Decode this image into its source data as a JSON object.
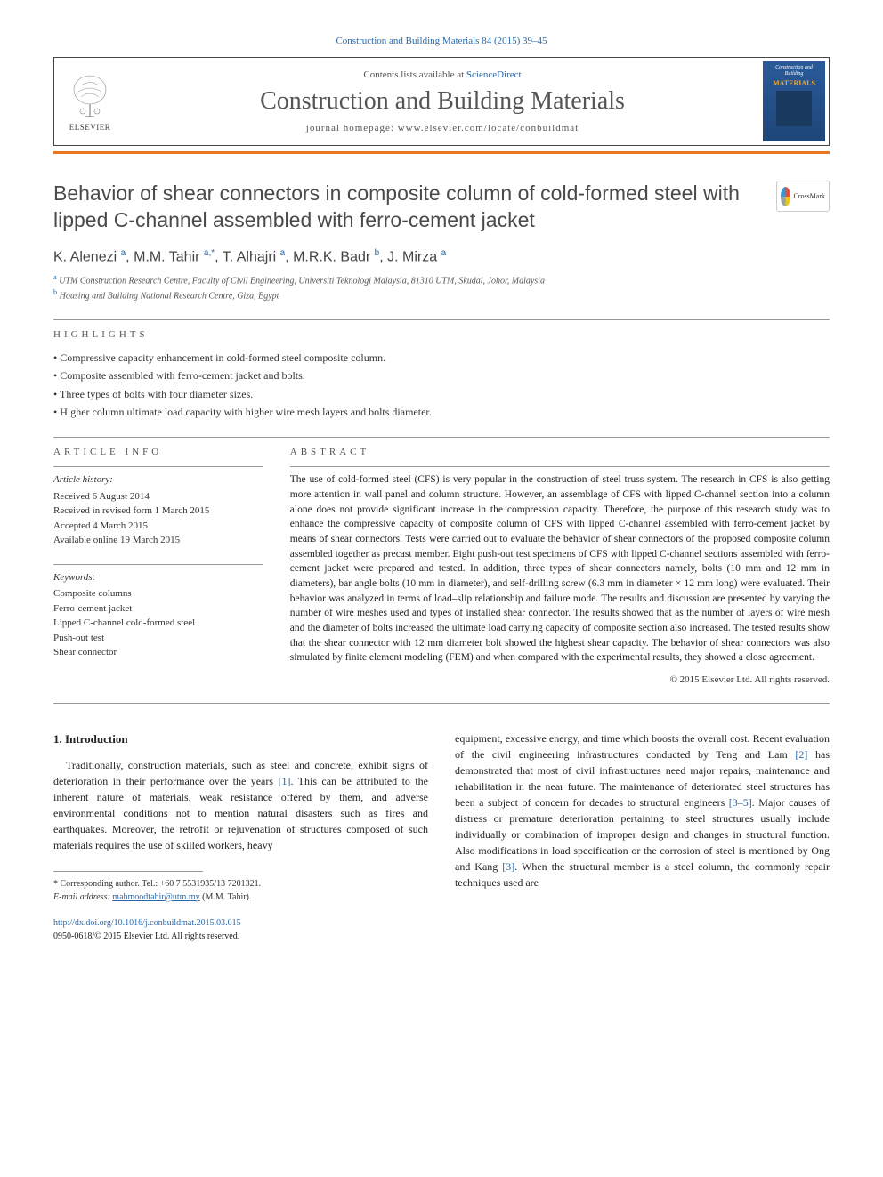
{
  "citation": "Construction and Building Materials 84 (2015) 39–45",
  "header": {
    "contents_prefix": "Contents lists available at ",
    "contents_link": "ScienceDirect",
    "journal_title": "Construction and Building Materials",
    "homepage": "journal homepage: www.elsevier.com/locate/conbuildmat",
    "elsevier": "ELSEVIER",
    "cover_line1": "Construction and Building",
    "cover_line2": "MATERIALS"
  },
  "crossmark": "CrossMark",
  "title": "Behavior of shear connectors in composite column of cold-formed steel with lipped C-channel assembled with ferro-cement jacket",
  "authors_html": "K. Alenezi <sup>a</sup>, M.M. Tahir <sup>a,*</sup>, T. Alhajri <sup>a</sup>, M.R.K. Badr <sup>b</sup>, J. Mirza <sup>a</sup>",
  "affiliations": [
    {
      "sup": "a",
      "text": "UTM Construction Research Centre, Faculty of Civil Engineering, Universiti Teknologi Malaysia, 81310 UTM, Skudai, Johor, Malaysia"
    },
    {
      "sup": "b",
      "text": "Housing and Building National Research Centre, Giza, Egypt"
    }
  ],
  "highlights_label": "highlights",
  "highlights": [
    "Compressive capacity enhancement in cold-formed steel composite column.",
    "Composite assembled with ferro-cement jacket and bolts.",
    "Three types of bolts with four diameter sizes.",
    "Higher column ultimate load capacity with higher wire mesh layers and bolts diameter."
  ],
  "article_info_label": "article info",
  "abstract_label": "abstract",
  "history": {
    "heading": "Article history:",
    "received": "Received 6 August 2014",
    "revised": "Received in revised form 1 March 2015",
    "accepted": "Accepted 4 March 2015",
    "online": "Available online 19 March 2015"
  },
  "keywords": {
    "heading": "Keywords:",
    "items": [
      "Composite columns",
      "Ferro-cement jacket",
      "Lipped C-channel cold-formed steel",
      "Push-out test",
      "Shear connector"
    ]
  },
  "abstract": "The use of cold-formed steel (CFS) is very popular in the construction of steel truss system. The research in CFS is also getting more attention in wall panel and column structure. However, an assemblage of CFS with lipped C-channel section into a column alone does not provide significant increase in the compression capacity. Therefore, the purpose of this research study was to enhance the compressive capacity of composite column of CFS with lipped C-channel assembled with ferro-cement jacket by means of shear connectors. Tests were carried out to evaluate the behavior of shear connectors of the proposed composite column assembled together as precast member. Eight push-out test specimens of CFS with lipped C-channel sections assembled with ferro-cement jacket were prepared and tested. In addition, three types of shear connectors namely, bolts (10 mm and 12 mm in diameters), bar angle bolts (10 mm in diameter), and self-drilling screw (6.3 mm in diameter × 12 mm long) were evaluated. Their behavior was analyzed in terms of load–slip relationship and failure mode. The results and discussion are presented by varying the number of wire meshes used and types of installed shear connector. The results showed that as the number of layers of wire mesh and the diameter of bolts increased the ultimate load carrying capacity of composite section also increased. The tested results show that the shear connector with 12 mm diameter bolt showed the highest shear capacity. The behavior of shear connectors was also simulated by finite element modeling (FEM) and when compared with the experimental results, they showed a close agreement.",
  "copyright": "© 2015 Elsevier Ltd. All rights reserved.",
  "intro": {
    "heading": "1. Introduction",
    "para1": "Traditionally, construction materials, such as steel and concrete, exhibit signs of deterioration in their performance over the years [1]. This can be attributed to the inherent nature of materials, weak resistance offered by them, and adverse environmental conditions not to mention natural disasters such as fires and earthquakes. Moreover, the retrofit or rejuvenation of structures composed of such materials requires the use of skilled workers, heavy",
    "para2": "equipment, excessive energy, and time which boosts the overall cost. Recent evaluation of the civil engineering infrastructures conducted by Teng and Lam [2] has demonstrated that most of civil infrastructures need major repairs, maintenance and rehabilitation in the near future. The maintenance of deteriorated steel structures has been a subject of concern for decades to structural engineers [3–5]. Major causes of distress or premature deterioration pertaining to steel structures usually include individually or combination of improper design and changes in structural function. Also modifications in load specification or the corrosion of steel is mentioned by Ong and Kang [3]. When the structural member is a steel column, the commonly repair techniques used are"
  },
  "footnote": {
    "corr": "* Corresponding author. Tel.: +60 7 5531935/13 7201321.",
    "email_label": "E-mail address: ",
    "email": "mahmoodtahir@utm.my",
    "email_name": " (M.M. Tahir)."
  },
  "doi": {
    "url": "http://dx.doi.org/10.1016/j.conbuildmat.2015.03.015",
    "issn": "0950-0618/© 2015 Elsevier Ltd. All rights reserved."
  },
  "colors": {
    "link": "#2968aa",
    "orange": "#e87722",
    "text": "#333333"
  }
}
